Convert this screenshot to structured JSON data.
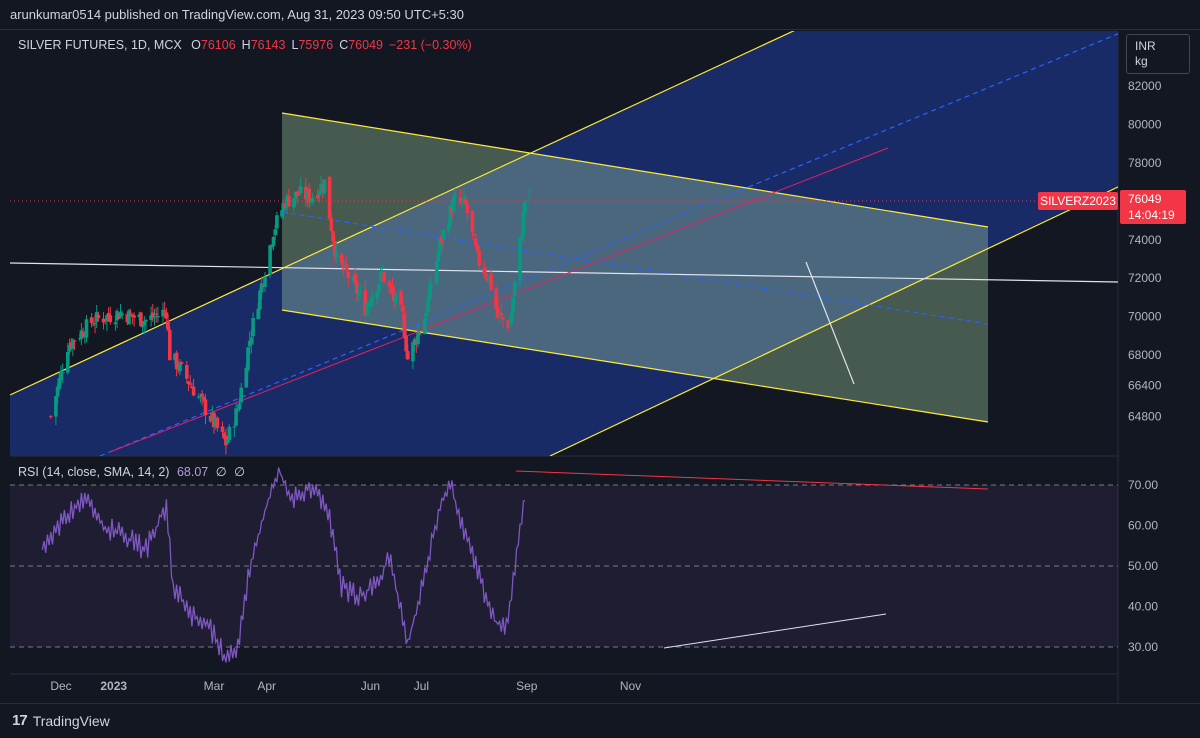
{
  "header": {
    "publisher": "arunkumar0514 published on TradingView.com, Aug 31, 2023 09:50 UTC+5:30"
  },
  "legend": {
    "symbol": "SILVER FUTURES, 1D, MCX",
    "open_label": "O",
    "open": "76106",
    "high_label": "H",
    "high": "76143",
    "low_label": "L",
    "low": "75976",
    "close_label": "C",
    "close": "76049",
    "change": "−231 (−0.30%)"
  },
  "rsi_legend": {
    "label": "RSI (14, close, SMA, 14, 2)",
    "value": "68.07",
    "extra1": "∅",
    "extra2": "∅"
  },
  "unit": {
    "currency": "INR",
    "unit": "kg"
  },
  "price_tag": {
    "price": "76049",
    "countdown": "14:04:19"
  },
  "symbol_tag": {
    "label": "SILVERZ2023"
  },
  "footer": {
    "brand": "TradingView",
    "logo_mark": "17"
  },
  "colors": {
    "up": "#089981",
    "down": "#f23645",
    "rsi": "#7e57c2",
    "channel_fill_blue": "#1e3a8a",
    "channel_fill_green": "#a5d6a7",
    "channel_line": "#ffeb3b"
  },
  "chart_data": {
    "type": "candlestick",
    "price_axis": {
      "ticks": [
        "82000",
        "80000",
        "78000",
        "76000",
        "74000",
        "72000",
        "70000",
        "68000",
        "66400",
        "64800"
      ],
      "tick_values": [
        82000,
        80000,
        78000,
        76000,
        74000,
        72000,
        70000,
        68000,
        66400,
        64800
      ]
    },
    "rsi_axis": {
      "ticks": [
        "70.00",
        "60.00",
        "50.00",
        "40.00",
        "30.00"
      ],
      "tick_values": [
        70,
        60,
        50,
        40,
        30
      ]
    },
    "x_axis": {
      "labels": [
        "Dec",
        "2023",
        "Mar",
        "Apr",
        "Jun",
        "Jul",
        "Sep",
        "Nov"
      ],
      "label_dates": [
        "2022-12-01",
        "2023-01-01",
        "2023-03-01",
        "2023-04-01",
        "2023-06-01",
        "2023-07-01",
        "2023-09-01",
        "2023-11-01"
      ]
    },
    "price_keypoints": [
      [
        "2022-11-25",
        64800
      ],
      [
        "2022-12-05",
        68500
      ],
      [
        "2022-12-20",
        69800
      ],
      [
        "2023-01-05",
        70200
      ],
      [
        "2023-01-20",
        69800
      ],
      [
        "2023-02-01",
        70300
      ],
      [
        "2023-02-03",
        68000
      ],
      [
        "2023-02-10",
        67200
      ],
      [
        "2023-02-20",
        65800
      ],
      [
        "2023-03-08",
        63400
      ],
      [
        "2023-03-15",
        65200
      ],
      [
        "2023-03-22",
        68800
      ],
      [
        "2023-04-05",
        74500
      ],
      [
        "2023-04-12",
        76000
      ],
      [
        "2023-04-20",
        76400
      ],
      [
        "2023-04-27",
        76200
      ],
      [
        "2023-05-05",
        77000
      ],
      [
        "2023-05-12",
        73000
      ],
      [
        "2023-05-20",
        72000
      ],
      [
        "2023-05-29",
        70500
      ],
      [
        "2023-06-08",
        72200
      ],
      [
        "2023-06-20",
        70000
      ],
      [
        "2023-06-23",
        67800
      ],
      [
        "2023-07-03",
        70000
      ],
      [
        "2023-07-12",
        73800
      ],
      [
        "2023-07-20",
        76000
      ],
      [
        "2023-07-27",
        75800
      ],
      [
        "2023-08-03",
        73000
      ],
      [
        "2023-08-10",
        72000
      ],
      [
        "2023-08-15",
        70000
      ],
      [
        "2023-08-22",
        69600
      ],
      [
        "2023-08-28",
        73800
      ],
      [
        "2023-08-31",
        76049
      ]
    ],
    "rsi_keypoints": [
      [
        "2022-11-20",
        55
      ],
      [
        "2022-12-05",
        63
      ],
      [
        "2022-12-15",
        67
      ],
      [
        "2022-12-25",
        60
      ],
      [
        "2023-01-05",
        58
      ],
      [
        "2023-01-20",
        54
      ],
      [
        "2023-02-01",
        65
      ],
      [
        "2023-02-05",
        45
      ],
      [
        "2023-02-15",
        38
      ],
      [
        "2023-02-25",
        36
      ],
      [
        "2023-03-08",
        27
      ],
      [
        "2023-03-15",
        30
      ],
      [
        "2023-03-22",
        50
      ],
      [
        "2023-04-01",
        65
      ],
      [
        "2023-04-08",
        74
      ],
      [
        "2023-04-15",
        66
      ],
      [
        "2023-04-28",
        70
      ],
      [
        "2023-05-08",
        62
      ],
      [
        "2023-05-15",
        45
      ],
      [
        "2023-05-25",
        42
      ],
      [
        "2023-06-05",
        46
      ],
      [
        "2023-06-12",
        52
      ],
      [
        "2023-06-23",
        31
      ],
      [
        "2023-07-03",
        47
      ],
      [
        "2023-07-12",
        66
      ],
      [
        "2023-07-18",
        70
      ],
      [
        "2023-07-25",
        60
      ],
      [
        "2023-08-05",
        46
      ],
      [
        "2023-08-14",
        36
      ],
      [
        "2023-08-20",
        35
      ],
      [
        "2023-08-25",
        50
      ],
      [
        "2023-08-28",
        60
      ],
      [
        "2023-08-31",
        68.07
      ]
    ],
    "current_price": 76049,
    "grid": false
  }
}
